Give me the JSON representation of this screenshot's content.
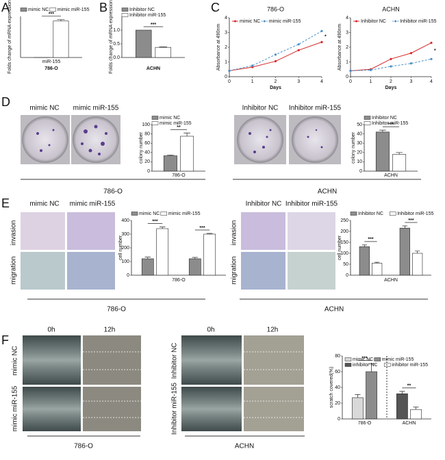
{
  "figure": {
    "panels": [
      "A",
      "B",
      "C",
      "D",
      "E",
      "F"
    ],
    "d": {
      "columns": [
        "mimic NC",
        "mimic miR-155",
        "Inhibitor NC",
        "Inhibitor miR-155"
      ],
      "groups": [
        "786-O",
        "ACHN"
      ]
    },
    "e": {
      "columns": [
        "mimic NC",
        "mimic miR-155",
        "Inhibitor NC",
        "Inhibitor miR-155"
      ],
      "rows": [
        "invasion",
        "migration",
        "invasion",
        "migration"
      ],
      "groups": [
        "786-O",
        "ACHN"
      ]
    },
    "f": {
      "columns": [
        "0h",
        "12h",
        "0h",
        "12h"
      ],
      "rows": [
        "mimic NC",
        "mimic miR-155",
        "Inhibitor NC",
        "Inhibitor miR-155"
      ],
      "groups": [
        "786-O",
        "ACHN"
      ]
    }
  },
  "chart_data": [
    {
      "type": "bar",
      "ylabel": "Folds change of mRNA expression",
      "xlabel": "786-O",
      "categories": [
        "miR-155"
      ],
      "ylim": [
        0,
        900
      ],
      "yticks": [],
      "legend": "top",
      "annotations": [
        "***"
      ],
      "series": [
        {
          "name": "mimic NC",
          "color": "#8c8c8c",
          "values": [
            1
          ],
          "errors": [
            0
          ]
        },
        {
          "name": "mimic miR-155",
          "color": "#ffffff",
          "values": [
            800
          ],
          "errors": [
            30
          ]
        }
      ]
    },
    {
      "type": "bar",
      "ylabel": "Folds change of mRNA expression",
      "xlabel": "ACHN",
      "categories": [
        null
      ],
      "ylim": [
        0,
        1.5
      ],
      "yticks": [
        {
          "value": 0,
          "label": "0.0"
        },
        {
          "value": 0.5,
          "label": "0.5"
        },
        {
          "value": 1,
          "label": "1.0"
        }
      ],
      "legend": "top",
      "annotations": [
        "***"
      ],
      "series": [
        {
          "name": "Inhibitor NC",
          "color": "#8c8c8c",
          "values": [
            1.0
          ],
          "errors": [
            0
          ]
        },
        {
          "name": "Inhibitor miR-155",
          "color": "#ffffff",
          "values": [
            0.37
          ],
          "errors": [
            0.02
          ]
        }
      ]
    },
    {
      "type": "line",
      "title": "786-O",
      "ylabel": "Absorbance at 490nm",
      "xlabel": "Days",
      "x": [
        0,
        1,
        2,
        3,
        4
      ],
      "xlim": [
        0,
        4
      ],
      "xticks": [
        0,
        1,
        2,
        3,
        4
      ],
      "ylim": [
        0,
        4
      ],
      "yticks": [
        0,
        1,
        2,
        3,
        4
      ],
      "legend": "upper left",
      "annotations": [
        "*"
      ],
      "series": [
        {
          "name": "mimic NC",
          "color": "#d62728",
          "line_style": "solid",
          "values": [
            0.4,
            0.65,
            1.05,
            1.8,
            2.35
          ]
        },
        {
          "name": "mimic miR-155",
          "color": "#4a90c8",
          "line_style": "dashed",
          "values": [
            0.4,
            0.75,
            1.5,
            2.2,
            3.1
          ]
        }
      ]
    },
    {
      "type": "line",
      "title": "ACHN",
      "ylabel": "Absorbance at 490nm",
      "xlabel": "Days",
      "x": [
        0,
        1,
        2,
        3,
        4
      ],
      "xlim": [
        0,
        4
      ],
      "xticks": [
        0,
        1,
        2,
        3,
        4
      ],
      "ylim": [
        0,
        4
      ],
      "yticks": [
        0,
        1,
        2,
        3,
        4
      ],
      "legend": "upper left",
      "annotations": [
        "*"
      ],
      "series": [
        {
          "name": "Inhibitor NC",
          "color": "#d62728",
          "line_style": "solid",
          "values": [
            0.4,
            0.5,
            1.2,
            1.6,
            2.3
          ]
        },
        {
          "name": "Inhibitor miR-155",
          "color": "#4a90c8",
          "line_style": "dashed",
          "values": [
            0.4,
            0.45,
            0.7,
            0.9,
            1.2
          ]
        }
      ]
    },
    {
      "type": "bar",
      "ylabel": "colony number",
      "categories": [
        "786-O"
      ],
      "ylim": [
        0,
        100
      ],
      "yticks": [
        0,
        20,
        40,
        60,
        80,
        100
      ],
      "legend": "top",
      "annotations": [
        "**"
      ],
      "series": [
        {
          "name": "mimic NC",
          "color": "#8c8c8c",
          "values": [
            33
          ],
          "errors": [
            1.5
          ]
        },
        {
          "name": "mimic miR-155",
          "color": "#ffffff",
          "values": [
            75
          ],
          "errors": [
            7
          ]
        }
      ]
    },
    {
      "type": "bar",
      "ylabel": "colony number",
      "categories": [
        "ACHN"
      ],
      "ylim": [
        0,
        50
      ],
      "yticks": [
        0,
        10,
        20,
        30,
        40,
        50
      ],
      "legend": "top",
      "annotations": [
        "***"
      ],
      "series": [
        {
          "name": "Inhibitor NC",
          "color": "#8c8c8c",
          "values": [
            42
          ],
          "errors": [
            2
          ]
        },
        {
          "name": "Inhibitor miR-155",
          "color": "#ffffff",
          "values": [
            18
          ],
          "errors": [
            2
          ]
        }
      ]
    },
    {
      "type": "bar",
      "ylabel": "cell number",
      "xlabel": "786-O",
      "categories": [
        null,
        null
      ],
      "ylim": [
        0,
        400
      ],
      "yticks": [
        0,
        100,
        200,
        300,
        400
      ],
      "legend": "top",
      "annotations": [
        "***",
        "***"
      ],
      "series": [
        {
          "name": "mimic NC",
          "color": "#8c8c8c",
          "values": [
            120,
            120
          ],
          "errors": [
            12,
            10
          ]
        },
        {
          "name": "mimic miR-155",
          "color": "#ffffff",
          "values": [
            340,
            300
          ],
          "errors": [
            12,
            5
          ]
        }
      ]
    },
    {
      "type": "bar",
      "ylabel": "cell number",
      "xlabel": "ACHN",
      "categories": [
        null,
        null
      ],
      "ylim": [
        0,
        250
      ],
      "yticks": [
        0,
        50,
        100,
        150,
        200,
        250
      ],
      "legend": "top",
      "annotations": [
        "***",
        "***"
      ],
      "series": [
        {
          "name": "Inhibitor NC",
          "color": "#8c8c8c",
          "values": [
            130,
            215
          ],
          "errors": [
            8,
            10
          ]
        },
        {
          "name": "Inhibitor miR-155",
          "color": "#ffffff",
          "values": [
            55,
            100
          ],
          "errors": [
            4,
            10
          ]
        }
      ]
    },
    {
      "type": "bar",
      "ylabel": "scratch covered(%)",
      "categories": [
        "786-O",
        "ACHN"
      ],
      "ylim": [
        0,
        80
      ],
      "yticks": [
        0,
        20,
        40,
        60,
        80
      ],
      "legend": "upper left",
      "annotations": [
        "***",
        "**"
      ],
      "series": [
        {
          "name": "mimic NC",
          "color": "#d9d9d9",
          "values": [
            27,
            null
          ],
          "errors": [
            4,
            null
          ]
        },
        {
          "name": "mimic miR-155",
          "color": "#8c8c8c",
          "values": [
            60,
            null
          ],
          "errors": [
            10,
            null
          ]
        },
        {
          "name": "inhibitor NC",
          "color": "#555555",
          "values": [
            null,
            32
          ],
          "errors": [
            null,
            3
          ]
        },
        {
          "name": "inhibitor miR-155",
          "color": "#ffffff",
          "values": [
            null,
            12
          ],
          "errors": [
            null,
            3
          ]
        }
      ]
    }
  ]
}
